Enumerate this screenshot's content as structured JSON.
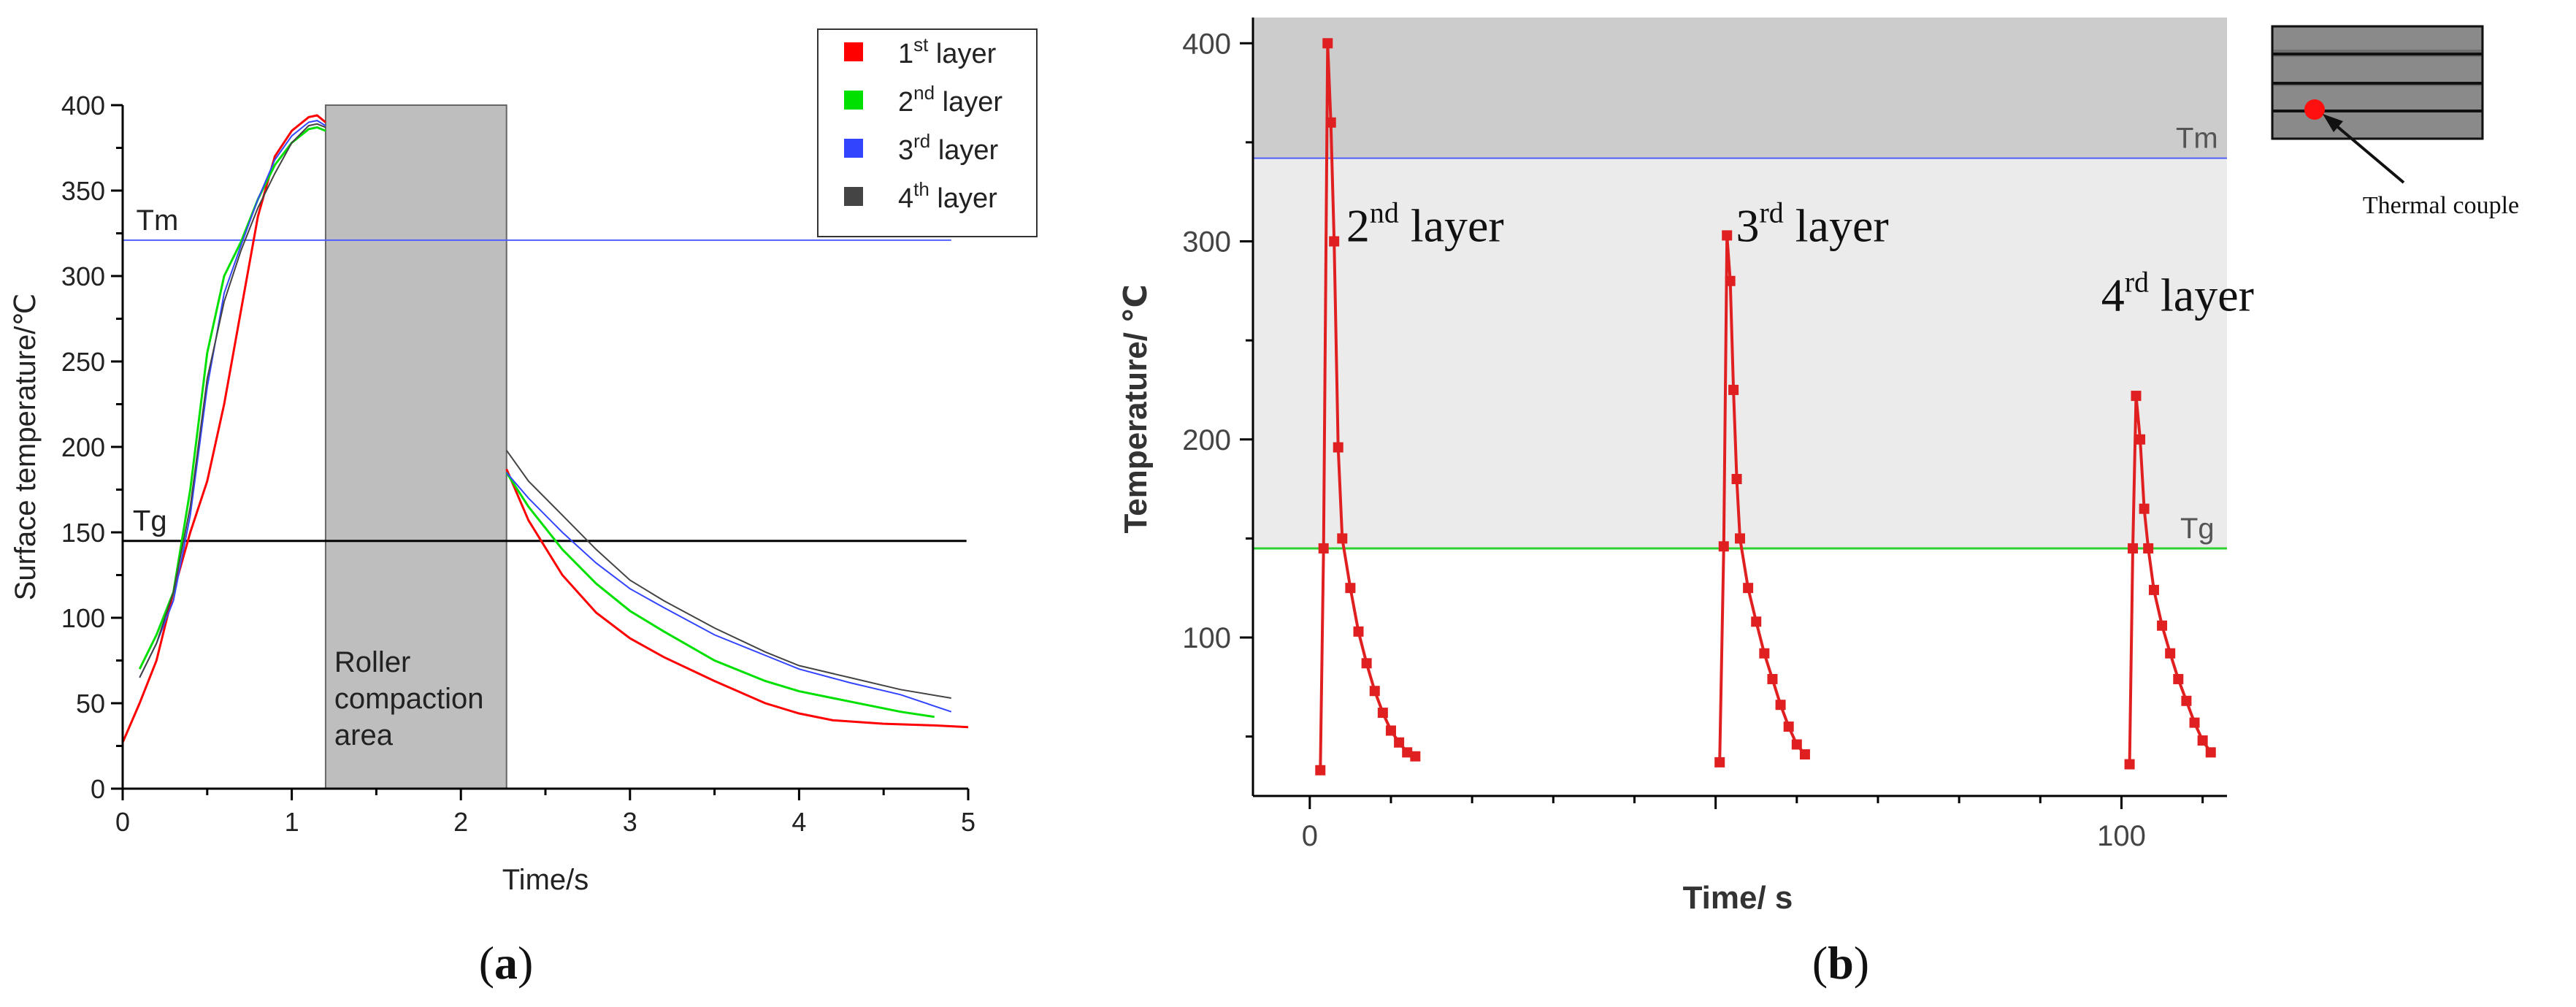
{
  "panel_a": {
    "caption": "a",
    "chart_data": {
      "type": "line",
      "title": "",
      "xlabel": "Time/s",
      "ylabel": "Surface temperature/℃",
      "xlim": [
        0,
        5
      ],
      "ylim": [
        0,
        400
      ],
      "xticks": [
        0,
        1,
        2,
        3,
        4,
        5
      ],
      "yticks": [
        0,
        50,
        100,
        150,
        200,
        250,
        300,
        350,
        400
      ],
      "grid": false,
      "legend_position": "top-right",
      "shaded_region": {
        "x_start": 1.2,
        "x_end": 2.27,
        "y_start": 0,
        "y_end": 400,
        "label_lines": [
          "Roller",
          "compaction",
          "area"
        ],
        "color": "#bebebe"
      },
      "reference_lines": [
        {
          "name": "Tm",
          "y": 321,
          "color": "#4f60ff"
        },
        {
          "name": "Tg",
          "y": 145,
          "color": "#000000"
        }
      ],
      "series": [
        {
          "name": "1st layer",
          "legend_base": "1",
          "legend_sup": "st",
          "legend_rest": " layer",
          "color": "#ff0000",
          "x": [
            0,
            0.1,
            0.2,
            0.3,
            0.4,
            0.5,
            0.6,
            0.7,
            0.8,
            0.9,
            1.0,
            1.1,
            1.15,
            1.2,
            null,
            2.27,
            2.4,
            2.6,
            2.8,
            3.0,
            3.2,
            3.5,
            3.8,
            4.0,
            4.2,
            4.5,
            4.8,
            5.0
          ],
          "y": [
            27,
            50,
            75,
            115,
            150,
            180,
            225,
            280,
            335,
            370,
            385,
            393,
            394,
            390,
            null,
            187,
            157,
            125,
            103,
            88,
            77,
            63,
            50,
            44,
            40,
            38,
            37,
            36
          ]
        },
        {
          "name": "2nd layer",
          "legend_base": "2",
          "legend_sup": "nd",
          "legend_rest": " layer",
          "color": "#00e000",
          "x": [
            0.1,
            0.2,
            0.3,
            0.4,
            0.5,
            0.6,
            0.7,
            0.8,
            0.9,
            1.0,
            1.1,
            1.15,
            1.2,
            null,
            2.27,
            2.4,
            2.6,
            2.8,
            3.0,
            3.2,
            3.5,
            3.8,
            4.0,
            4.3,
            4.6,
            4.8
          ],
          "y": [
            70,
            90,
            115,
            175,
            255,
            300,
            320,
            345,
            365,
            378,
            386,
            387,
            385,
            null,
            185,
            165,
            140,
            120,
            104,
            92,
            75,
            63,
            57,
            51,
            45,
            42
          ]
        },
        {
          "name": "3rd layer",
          "legend_base": "3",
          "legend_sup": "rd",
          "legend_rest": " layer",
          "color": "#3344ff",
          "x": [
            0.1,
            0.2,
            0.3,
            0.4,
            0.5,
            0.6,
            0.7,
            0.8,
            0.9,
            1.0,
            1.1,
            1.15,
            1.2,
            null,
            2.27,
            2.4,
            2.6,
            2.8,
            3.0,
            3.2,
            3.5,
            3.8,
            4.0,
            4.3,
            4.6,
            4.9
          ],
          "y": [
            65,
            85,
            110,
            160,
            235,
            290,
            318,
            345,
            368,
            382,
            390,
            391,
            388,
            null,
            185,
            170,
            150,
            132,
            117,
            106,
            90,
            78,
            70,
            62,
            55,
            45
          ]
        },
        {
          "name": "4th layer",
          "legend_base": "4",
          "legend_sup": "th",
          "legend_rest": " layer",
          "color": "#444444",
          "x": [
            0.1,
            0.2,
            0.3,
            0.4,
            0.5,
            0.6,
            0.7,
            0.8,
            0.9,
            1.0,
            1.1,
            1.15,
            1.2,
            null,
            2.27,
            2.4,
            2.6,
            2.8,
            3.0,
            3.2,
            3.5,
            3.8,
            4.0,
            4.3,
            4.6,
            4.9
          ],
          "y": [
            65,
            85,
            115,
            165,
            240,
            285,
            315,
            340,
            360,
            378,
            388,
            389,
            387,
            null,
            198,
            180,
            160,
            140,
            122,
            110,
            94,
            80,
            72,
            65,
            58,
            53
          ]
        }
      ]
    }
  },
  "panel_b": {
    "caption": "b",
    "chart_data": {
      "type": "line",
      "title": "",
      "xlabel": "Time/ s",
      "ylabel": "Temperature/ ℃",
      "xlim": [
        -7,
        113
      ],
      "ylim": [
        20,
        413
      ],
      "xticks": [
        0,
        100
      ],
      "yticks": [
        100,
        200,
        300,
        400
      ],
      "grid": false,
      "bands": [
        {
          "y_start": 342,
          "y_end": 413,
          "color": "#cccccc"
        },
        {
          "y_start": 145,
          "y_end": 342,
          "color": "#ebebeb"
        }
      ],
      "reference_lines": [
        {
          "name": "Tm",
          "y": 342,
          "color": "#4f60ff"
        },
        {
          "name": "Tg",
          "y": 145,
          "color": "#2fd02f"
        }
      ],
      "annotations": [
        {
          "base": "2",
          "sup": "nd",
          "rest": " layer",
          "x": 4.5,
          "y": 300
        },
        {
          "base": "3",
          "sup": "rd",
          "rest": " layer",
          "x": 52.5,
          "y": 300
        },
        {
          "base": "4",
          "sup": "rd",
          "rest": " layer",
          "x": 97.5,
          "y": 265
        }
      ],
      "series": [
        {
          "name": "2nd layer",
          "color": "#e02020",
          "x": [
            1.3,
            1.7,
            2.2,
            2.6,
            3.0,
            3.5,
            4.0,
            5.0,
            6.0,
            7.0,
            8.0,
            9.0,
            10.0,
            11.0,
            12.0,
            13.0
          ],
          "y": [
            33,
            145,
            400,
            360,
            300,
            196,
            150,
            125,
            103,
            87,
            73,
            62,
            53,
            47,
            42,
            40
          ]
        },
        {
          "name": "3rd layer",
          "color": "#e02020",
          "x": [
            50.5,
            51.0,
            51.4,
            51.8,
            52.2,
            52.6,
            53.0,
            54.0,
            55.0,
            56.0,
            57.0,
            58.0,
            59.0,
            60.0,
            61.0
          ],
          "y": [
            37,
            146,
            303,
            280,
            225,
            180,
            150,
            125,
            108,
            92,
            79,
            66,
            55,
            46,
            41
          ]
        },
        {
          "name": "4th layer",
          "color": "#e02020",
          "x": [
            101.0,
            101.4,
            101.8,
            102.3,
            102.8,
            103.3,
            104.0,
            105.0,
            106.0,
            107.0,
            108.0,
            109.0,
            110.0,
            111.0
          ],
          "y": [
            36,
            145,
            222,
            200,
            165,
            145,
            124,
            106,
            92,
            79,
            68,
            57,
            48,
            42
          ]
        }
      ]
    }
  },
  "inset": {
    "label": "Thermal couple"
  }
}
